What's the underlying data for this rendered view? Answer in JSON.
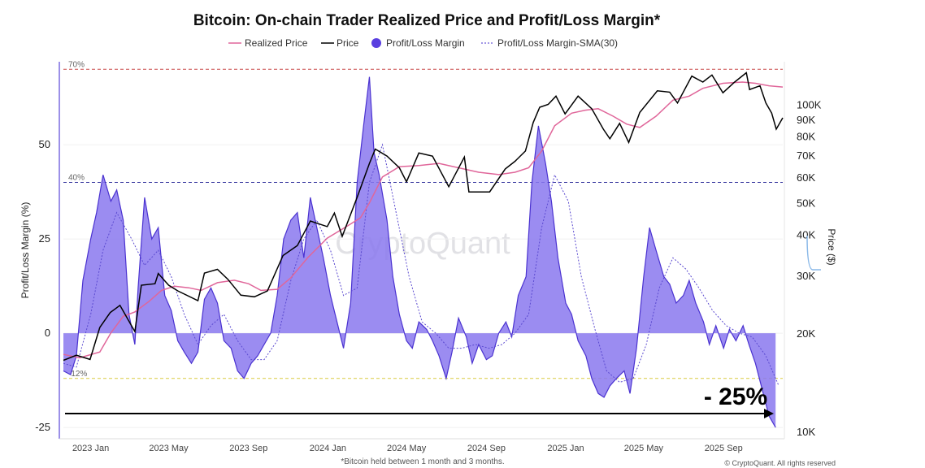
{
  "chart_data": {
    "type": "line",
    "title": "Bitcoin: On-chain Trader Realized Price and Profit/Loss Margin*",
    "footnote": "*Bitcoin held between 1 month and 3 months.",
    "credit": "© CryptoQuant. All rights reserved",
    "watermark": "CryptoQuant",
    "annotation": "- 25%",
    "legend": [
      {
        "name": "Realized Price",
        "color": "#e0669a",
        "style": "line"
      },
      {
        "name": "Price",
        "color": "#000000",
        "style": "line"
      },
      {
        "name": "Profit/Loss Margin",
        "color": "#5a3fe0",
        "style": "dot"
      },
      {
        "name": "Profit/Loss Margin-SMA(30)",
        "color": "#6a5ad8",
        "style": "dotted"
      }
    ],
    "x_ticks": [
      "2023 Jan",
      "2023 May",
      "2023 Sep",
      "2024 Jan",
      "2024 May",
      "2024 Sep",
      "2025 Jan",
      "2025 May",
      "2025 Sep"
    ],
    "y_left": {
      "label": "Profit/Loss Margin (%)",
      "ticks": [
        -25,
        0,
        25,
        50
      ],
      "range": [
        -28,
        72
      ]
    },
    "y_right": {
      "label": "Price ($)",
      "ticks": [
        "10K",
        "20K",
        "30K",
        "40K",
        "50K",
        "60K",
        "70K",
        "80K",
        "90K",
        "100K"
      ],
      "tick_values": [
        10000,
        20000,
        30000,
        40000,
        50000,
        60000,
        70000,
        80000,
        90000,
        100000
      ],
      "scale": "log",
      "range": [
        9500,
        135000
      ]
    },
    "reference_lines": [
      {
        "label": "70%",
        "value": 70,
        "color": "#c84848"
      },
      {
        "label": "40%",
        "value": 40,
        "color": "#3a3aa0"
      },
      {
        "label": "-12%",
        "value": -12,
        "color": "#d8cc40"
      }
    ],
    "x_range": [
      "2022-11-20",
      "2025-12-01"
    ],
    "profit_loss_margin": [
      [
        "2022-11-20",
        -10
      ],
      [
        "2022-12-01",
        -11
      ],
      [
        "2022-12-10",
        -6
      ],
      [
        "2022-12-20",
        14
      ],
      [
        "2023-01-01",
        25
      ],
      [
        "2023-01-10",
        32
      ],
      [
        "2023-01-20",
        42
      ],
      [
        "2023-02-01",
        35
      ],
      [
        "2023-02-10",
        38
      ],
      [
        "2023-02-20",
        30
      ],
      [
        "2023-03-01",
        5
      ],
      [
        "2023-03-10",
        -3
      ],
      [
        "2023-03-15",
        12
      ],
      [
        "2023-03-25",
        36
      ],
      [
        "2023-04-05",
        25
      ],
      [
        "2023-04-15",
        28
      ],
      [
        "2023-04-25",
        10
      ],
      [
        "2023-05-05",
        6
      ],
      [
        "2023-05-15",
        -2
      ],
      [
        "2023-05-25",
        -5
      ],
      [
        "2023-06-05",
        -8
      ],
      [
        "2023-06-15",
        -5
      ],
      [
        "2023-06-25",
        9
      ],
      [
        "2023-07-05",
        12
      ],
      [
        "2023-07-15",
        8
      ],
      [
        "2023-07-25",
        -2
      ],
      [
        "2023-08-05",
        -4
      ],
      [
        "2023-08-15",
        -10
      ],
      [
        "2023-08-25",
        -12
      ],
      [
        "2023-09-05",
        -8
      ],
      [
        "2023-09-15",
        -6
      ],
      [
        "2023-09-25",
        -3
      ],
      [
        "2023-10-05",
        0
      ],
      [
        "2023-10-15",
        10
      ],
      [
        "2023-10-25",
        25
      ],
      [
        "2023-11-05",
        30
      ],
      [
        "2023-11-15",
        32
      ],
      [
        "2023-11-25",
        20
      ],
      [
        "2023-12-05",
        36
      ],
      [
        "2023-12-15",
        28
      ],
      [
        "2023-12-25",
        20
      ],
      [
        "2024-01-05",
        10
      ],
      [
        "2024-01-15",
        3
      ],
      [
        "2024-01-25",
        -4
      ],
      [
        "2024-02-05",
        8
      ],
      [
        "2024-02-15",
        40
      ],
      [
        "2024-02-25",
        55
      ],
      [
        "2024-03-05",
        68
      ],
      [
        "2024-03-12",
        48
      ],
      [
        "2024-03-20",
        42
      ],
      [
        "2024-04-01",
        30
      ],
      [
        "2024-04-10",
        15
      ],
      [
        "2024-04-20",
        5
      ],
      [
        "2024-05-01",
        -2
      ],
      [
        "2024-05-10",
        -4
      ],
      [
        "2024-05-20",
        3
      ],
      [
        "2024-06-01",
        1
      ],
      [
        "2024-06-10",
        -2
      ],
      [
        "2024-06-20",
        -6
      ],
      [
        "2024-07-01",
        -12
      ],
      [
        "2024-07-10",
        -5
      ],
      [
        "2024-07-20",
        4
      ],
      [
        "2024-08-01",
        -1
      ],
      [
        "2024-08-10",
        -8
      ],
      [
        "2024-08-20",
        -3
      ],
      [
        "2024-09-01",
        -7
      ],
      [
        "2024-09-10",
        -6
      ],
      [
        "2024-09-20",
        0
      ],
      [
        "2024-10-01",
        3
      ],
      [
        "2024-10-10",
        -1
      ],
      [
        "2024-10-20",
        10
      ],
      [
        "2024-11-01",
        15
      ],
      [
        "2024-11-10",
        40
      ],
      [
        "2024-11-20",
        55
      ],
      [
        "2024-12-01",
        45
      ],
      [
        "2024-12-10",
        35
      ],
      [
        "2024-12-20",
        20
      ],
      [
        "2025-01-01",
        8
      ],
      [
        "2025-01-10",
        5
      ],
      [
        "2025-01-20",
        -2
      ],
      [
        "2025-02-01",
        -6
      ],
      [
        "2025-02-10",
        -12
      ],
      [
        "2025-02-20",
        -16
      ],
      [
        "2025-03-01",
        -17
      ],
      [
        "2025-03-10",
        -14
      ],
      [
        "2025-03-20",
        -12
      ],
      [
        "2025-04-01",
        -10
      ],
      [
        "2025-04-10",
        -16
      ],
      [
        "2025-04-20",
        -4
      ],
      [
        "2025-05-01",
        15
      ],
      [
        "2025-05-10",
        28
      ],
      [
        "2025-05-20",
        22
      ],
      [
        "2025-06-01",
        15
      ],
      [
        "2025-06-10",
        13
      ],
      [
        "2025-06-20",
        8
      ],
      [
        "2025-07-01",
        10
      ],
      [
        "2025-07-10",
        14
      ],
      [
        "2025-07-20",
        8
      ],
      [
        "2025-08-01",
        3
      ],
      [
        "2025-08-10",
        -3
      ],
      [
        "2025-08-20",
        2
      ],
      [
        "2025-09-01",
        -4
      ],
      [
        "2025-09-10",
        1
      ],
      [
        "2025-09-20",
        -2
      ],
      [
        "2025-10-01",
        2
      ],
      [
        "2025-10-10",
        -3
      ],
      [
        "2025-10-20",
        -8
      ],
      [
        "2025-11-01",
        -16
      ],
      [
        "2025-11-10",
        -22
      ],
      [
        "2025-11-20",
        -25
      ]
    ],
    "profit_loss_margin_sma30": [
      [
        "2022-11-20",
        -8
      ],
      [
        "2022-12-10",
        -9
      ],
      [
        "2023-01-01",
        5
      ],
      [
        "2023-01-20",
        22
      ],
      [
        "2023-02-10",
        32
      ],
      [
        "2023-03-05",
        25
      ],
      [
        "2023-03-25",
        18
      ],
      [
        "2023-04-15",
        22
      ],
      [
        "2023-05-05",
        15
      ],
      [
        "2023-05-25",
        5
      ],
      [
        "2023-06-15",
        -3
      ],
      [
        "2023-07-05",
        2
      ],
      [
        "2023-07-25",
        5
      ],
      [
        "2023-08-15",
        -2
      ],
      [
        "2023-09-05",
        -7
      ],
      [
        "2023-09-25",
        -7
      ],
      [
        "2023-10-15",
        -2
      ],
      [
        "2023-11-05",
        14
      ],
      [
        "2023-11-25",
        25
      ],
      [
        "2023-12-15",
        30
      ],
      [
        "2024-01-05",
        22
      ],
      [
        "2024-01-25",
        10
      ],
      [
        "2024-02-15",
        12
      ],
      [
        "2024-03-05",
        40
      ],
      [
        "2024-03-25",
        50
      ],
      [
        "2024-04-15",
        32
      ],
      [
        "2024-05-05",
        15
      ],
      [
        "2024-05-25",
        3
      ],
      [
        "2024-06-15",
        0
      ],
      [
        "2024-07-05",
        -4
      ],
      [
        "2024-07-25",
        -4
      ],
      [
        "2024-08-15",
        -3
      ],
      [
        "2024-09-05",
        -4
      ],
      [
        "2024-09-25",
        -3
      ],
      [
        "2024-10-15",
        0
      ],
      [
        "2024-11-05",
        5
      ],
      [
        "2024-11-25",
        28
      ],
      [
        "2024-12-15",
        42
      ],
      [
        "2025-01-05",
        35
      ],
      [
        "2025-01-25",
        15
      ],
      [
        "2025-02-15",
        1
      ],
      [
        "2025-03-05",
        -10
      ],
      [
        "2025-03-25",
        -13
      ],
      [
        "2025-04-15",
        -12
      ],
      [
        "2025-05-05",
        -3
      ],
      [
        "2025-05-25",
        12
      ],
      [
        "2025-06-15",
        20
      ],
      [
        "2025-07-05",
        17
      ],
      [
        "2025-07-25",
        12
      ],
      [
        "2025-08-15",
        6
      ],
      [
        "2025-09-05",
        2
      ],
      [
        "2025-09-25",
        0
      ],
      [
        "2025-10-15",
        -1
      ],
      [
        "2025-11-05",
        -6
      ],
      [
        "2025-11-25",
        -14
      ]
    ],
    "price": [
      [
        "2022-11-20",
        16500
      ],
      [
        "2022-12-10",
        17100
      ],
      [
        "2022-12-31",
        16600
      ],
      [
        "2023-01-15",
        20800
      ],
      [
        "2023-01-31",
        23100
      ],
      [
        "2023-02-15",
        24300
      ],
      [
        "2023-03-10",
        20200
      ],
      [
        "2023-03-20",
        28000
      ],
      [
        "2023-04-10",
        28300
      ],
      [
        "2023-04-15",
        30400
      ],
      [
        "2023-05-01",
        28000
      ],
      [
        "2023-05-15",
        26900
      ],
      [
        "2023-06-15",
        25100
      ],
      [
        "2023-06-25",
        30500
      ],
      [
        "2023-07-15",
        31300
      ],
      [
        "2023-07-31",
        29200
      ],
      [
        "2023-08-20",
        26100
      ],
      [
        "2023-09-10",
        25800
      ],
      [
        "2023-09-30",
        26900
      ],
      [
        "2023-10-24",
        34500
      ],
      [
        "2023-11-15",
        37000
      ],
      [
        "2023-12-05",
        44000
      ],
      [
        "2023-12-31",
        42300
      ],
      [
        "2024-01-11",
        46500
      ],
      [
        "2024-01-23",
        39500
      ],
      [
        "2024-02-15",
        52000
      ],
      [
        "2024-03-05",
        66000
      ],
      [
        "2024-03-14",
        73000
      ],
      [
        "2024-04-01",
        69500
      ],
      [
        "2024-04-20",
        64000
      ],
      [
        "2024-05-01",
        58000
      ],
      [
        "2024-05-20",
        71000
      ],
      [
        "2024-06-10",
        69500
      ],
      [
        "2024-07-05",
        56000
      ],
      [
        "2024-07-29",
        69000
      ],
      [
        "2024-08-05",
        54000
      ],
      [
        "2024-09-06",
        54000
      ],
      [
        "2024-09-30",
        63500
      ],
      [
        "2024-10-15",
        67000
      ],
      [
        "2024-10-31",
        72000
      ],
      [
        "2024-11-12",
        88000
      ],
      [
        "2024-11-22",
        98000
      ],
      [
        "2024-12-05",
        100000
      ],
      [
        "2024-12-17",
        106000
      ],
      [
        "2024-12-31",
        93500
      ],
      [
        "2025-01-20",
        106000
      ],
      [
        "2025-02-10",
        97000
      ],
      [
        "2025-02-28",
        84000
      ],
      [
        "2025-03-10",
        78500
      ],
      [
        "2025-03-25",
        87500
      ],
      [
        "2025-04-08",
        76500
      ],
      [
        "2025-04-25",
        94500
      ],
      [
        "2025-05-22",
        110000
      ],
      [
        "2025-06-10",
        109000
      ],
      [
        "2025-06-22",
        101000
      ],
      [
        "2025-07-14",
        122000
      ],
      [
        "2025-07-31",
        117000
      ],
      [
        "2025-08-14",
        123000
      ],
      [
        "2025-08-31",
        108500
      ],
      [
        "2025-09-18",
        117000
      ],
      [
        "2025-10-06",
        125000
      ],
      [
        "2025-10-11",
        111000
      ],
      [
        "2025-10-27",
        114000
      ],
      [
        "2025-11-05",
        101000
      ],
      [
        "2025-11-14",
        94000
      ],
      [
        "2025-11-21",
        84000
      ],
      [
        "2025-12-01",
        91000
      ]
    ],
    "realized_price": [
      [
        "2022-11-20",
        17200
      ],
      [
        "2022-12-15",
        16800
      ],
      [
        "2023-01-15",
        17500
      ],
      [
        "2023-02-01",
        20000
      ],
      [
        "2023-02-20",
        22500
      ],
      [
        "2023-03-10",
        23200
      ],
      [
        "2023-04-01",
        25000
      ],
      [
        "2023-04-20",
        27000
      ],
      [
        "2023-05-10",
        27800
      ],
      [
        "2023-06-01",
        27500
      ],
      [
        "2023-06-20",
        27000
      ],
      [
        "2023-07-15",
        28500
      ],
      [
        "2023-08-10",
        29000
      ],
      [
        "2023-09-01",
        28300
      ],
      [
        "2023-09-20",
        27000
      ],
      [
        "2023-10-15",
        27200
      ],
      [
        "2023-11-05",
        29500
      ],
      [
        "2023-12-01",
        34000
      ],
      [
        "2023-12-31",
        39000
      ],
      [
        "2024-01-31",
        42500
      ],
      [
        "2024-02-20",
        45000
      ],
      [
        "2024-03-05",
        50000
      ],
      [
        "2024-03-25",
        60000
      ],
      [
        "2024-04-20",
        64500
      ],
      [
        "2024-05-20",
        65000
      ],
      [
        "2024-06-20",
        66000
      ],
      [
        "2024-07-20",
        64000
      ],
      [
        "2024-08-20",
        62000
      ],
      [
        "2024-09-20",
        61000
      ],
      [
        "2024-10-15",
        62000
      ],
      [
        "2024-11-05",
        64000
      ],
      [
        "2024-11-25",
        72000
      ],
      [
        "2024-12-15",
        86000
      ],
      [
        "2025-01-10",
        94000
      ],
      [
        "2025-01-31",
        96000
      ],
      [
        "2025-02-20",
        97000
      ],
      [
        "2025-03-15",
        92000
      ],
      [
        "2025-04-05",
        87000
      ],
      [
        "2025-04-25",
        85000
      ],
      [
        "2025-05-20",
        92000
      ],
      [
        "2025-06-15",
        103000
      ],
      [
        "2025-07-10",
        106000
      ],
      [
        "2025-07-31",
        112000
      ],
      [
        "2025-08-31",
        116000
      ],
      [
        "2025-09-30",
        117000
      ],
      [
        "2025-10-20",
        116000
      ],
      [
        "2025-11-10",
        114000
      ],
      [
        "2025-12-01",
        113000
      ]
    ]
  }
}
